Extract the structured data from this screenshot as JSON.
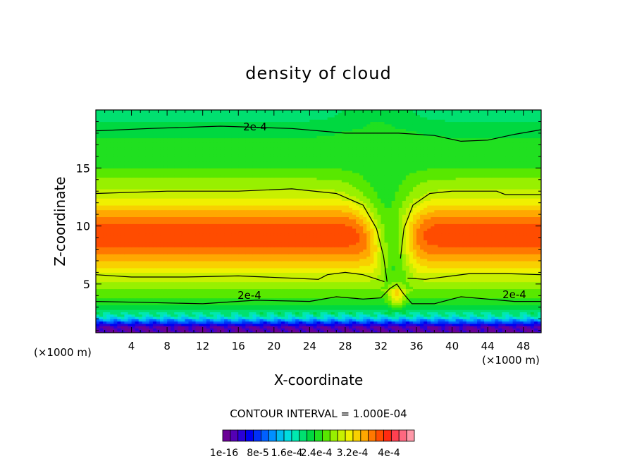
{
  "chart_data": {
    "type": "heatmap",
    "title": "density of cloud",
    "xlabel": "X-coordinate",
    "ylabel": "Z-coordinate",
    "x_unit_label": "(×1000 m)",
    "xlim": [
      0,
      50
    ],
    "ylim": [
      0.8,
      20
    ],
    "x_ticks": [
      4,
      8,
      12,
      16,
      20,
      24,
      28,
      32,
      36,
      40,
      44,
      48
    ],
    "y_ticks": [
      5,
      10,
      15
    ],
    "contour_interval_text": "CONTOUR INTERVAL = 1.000E-04",
    "contour_label": "2e-4",
    "colorbar_labels": [
      "1e-16",
      "8e-5",
      "1.6e-4",
      "2.4e-4",
      "3.2e-4",
      "4e-4"
    ],
    "colorbar_colors": [
      "#6a0096",
      "#5400b4",
      "#2a00d8",
      "#0000f0",
      "#0030f8",
      "#0060ff",
      "#0090ff",
      "#00bcf0",
      "#00dce0",
      "#00e8b0",
      "#00e070",
      "#00d840",
      "#20e020",
      "#58e800",
      "#98f000",
      "#c8f000",
      "#f0f000",
      "#f8d000",
      "#ffa800",
      "#ff7800",
      "#ff4c00",
      "#ff2a10",
      "#ff4050",
      "#ff6880",
      "#ff98a8"
    ],
    "value_max": 0.0004
  }
}
